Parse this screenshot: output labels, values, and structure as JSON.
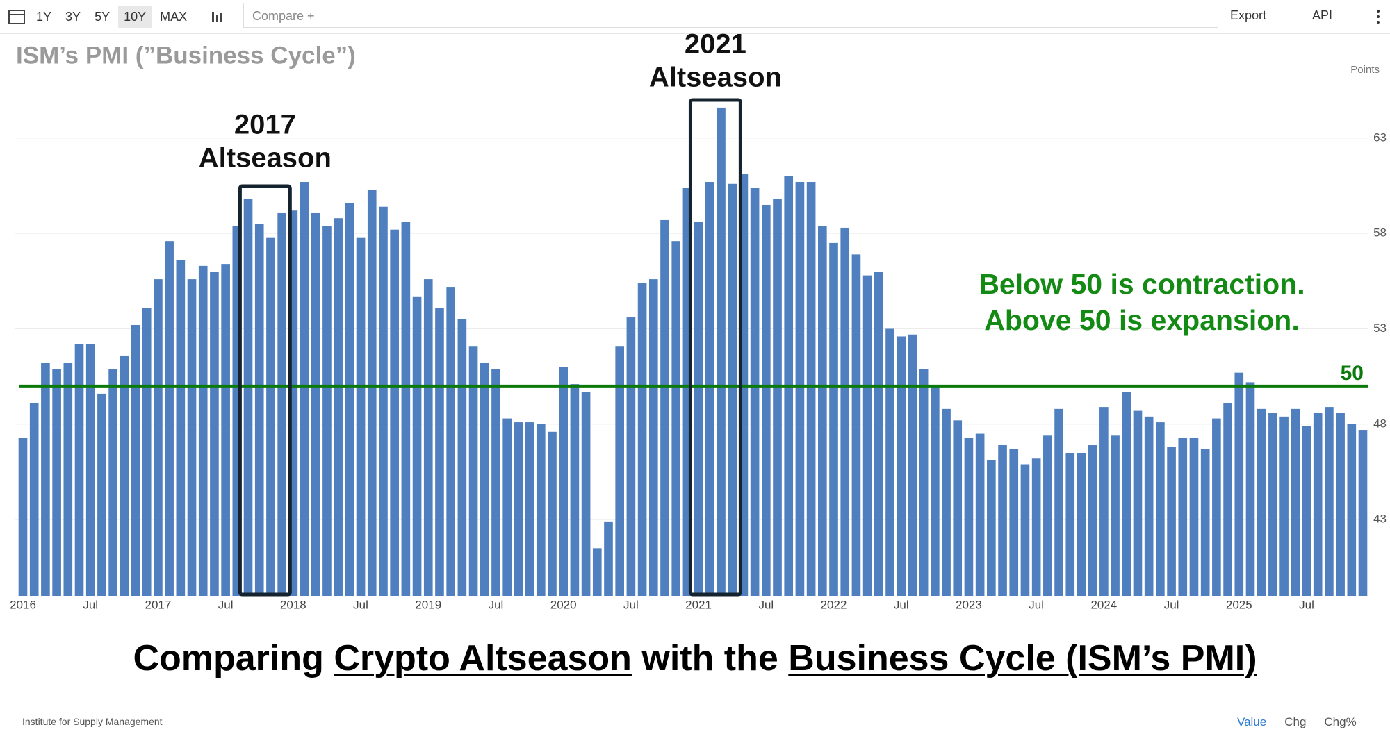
{
  "toolbar": {
    "ranges": [
      "1Y",
      "3Y",
      "5Y",
      "10Y",
      "MAX"
    ],
    "compare": "Compare +",
    "export": "Export",
    "api": "API"
  },
  "chart_data": {
    "type": "bar",
    "title": "ISM’s PMI (”Business Cycle”)",
    "y_label": "Points",
    "categories": [
      "2016",
      null,
      null,
      null,
      null,
      null,
      "Jul",
      null,
      null,
      null,
      null,
      null,
      "2017",
      null,
      null,
      null,
      null,
      null,
      "Jul",
      null,
      null,
      null,
      null,
      null,
      "2018",
      null,
      null,
      null,
      null,
      null,
      "Jul",
      null,
      null,
      null,
      null,
      null,
      "2019",
      null,
      null,
      null,
      null,
      null,
      "Jul",
      null,
      null,
      null,
      null,
      null,
      "2020",
      null,
      null,
      null,
      null,
      null,
      "Jul",
      null,
      null,
      null,
      null,
      null,
      "2021",
      null,
      null,
      null,
      null,
      null,
      "Jul",
      null,
      null,
      null,
      null,
      null,
      "2022",
      null,
      null,
      null,
      null,
      null,
      "Jul",
      null,
      null,
      null,
      null,
      null,
      "2023",
      null,
      null,
      null,
      null,
      null,
      "Jul",
      null,
      null,
      null,
      null,
      null,
      "2024",
      null,
      null,
      null,
      null,
      null,
      "Jul",
      null,
      null,
      null,
      null,
      null,
      "2025",
      null,
      null,
      null,
      null,
      null,
      "Jul",
      null,
      null,
      null,
      null,
      null
    ],
    "values": [
      47.3,
      49.1,
      51.2,
      50.9,
      51.2,
      52.2,
      52.2,
      49.6,
      50.9,
      51.6,
      53.2,
      54.1,
      55.6,
      57.6,
      56.6,
      55.6,
      56.3,
      56.0,
      56.4,
      58.4,
      59.8,
      58.5,
      57.8,
      59.1,
      59.2,
      60.7,
      59.1,
      58.4,
      58.8,
      59.6,
      57.8,
      60.3,
      59.4,
      58.2,
      58.6,
      54.7,
      55.6,
      54.1,
      55.2,
      53.5,
      52.1,
      51.2,
      50.9,
      48.3,
      48.1,
      48.1,
      48.0,
      47.6,
      51.0,
      50.1,
      49.7,
      41.5,
      42.9,
      52.1,
      53.6,
      55.4,
      55.6,
      58.7,
      57.6,
      60.4,
      58.6,
      60.7,
      64.6,
      60.6,
      61.1,
      60.4,
      59.5,
      59.8,
      61.0,
      60.7,
      60.7,
      58.4,
      57.5,
      58.3,
      56.9,
      55.8,
      56.0,
      53.0,
      52.6,
      52.7,
      50.9,
      50.0,
      48.8,
      48.2,
      47.3,
      47.5,
      46.1,
      46.9,
      46.7,
      45.9,
      46.2,
      47.4,
      48.8,
      46.5,
      46.5,
      46.9,
      48.9,
      47.4,
      49.7,
      48.7,
      48.4,
      48.1,
      46.8,
      47.3,
      47.3,
      46.7,
      48.3,
      49.1,
      50.7,
      50.2,
      48.8,
      48.6,
      48.4,
      48.8,
      47.9,
      48.6,
      48.9,
      48.6,
      48.0,
      47.7
    ],
    "color": "#4f7fbf",
    "ylim": [
      39,
      67
    ],
    "yticks": [
      43,
      48,
      53,
      58,
      63
    ],
    "grid": true,
    "reference_line": {
      "value": 50,
      "color": "#0b7a0b"
    },
    "annotations": [
      {
        "lines": [
          "2017",
          "Altseason"
        ]
      },
      {
        "lines": [
          "2021",
          "Altseason"
        ]
      }
    ],
    "note": [
      "Below 50 is contraction.",
      "Above 50 is expansion."
    ],
    "caption": [
      "Comparing ",
      "Crypto Altseason",
      " with the ",
      "Business Cycle (ISM’s PMI)"
    ],
    "source": "Institute for Supply Management"
  },
  "footer": {
    "tabs": [
      "Value",
      "Chg",
      "Chg%"
    ]
  }
}
